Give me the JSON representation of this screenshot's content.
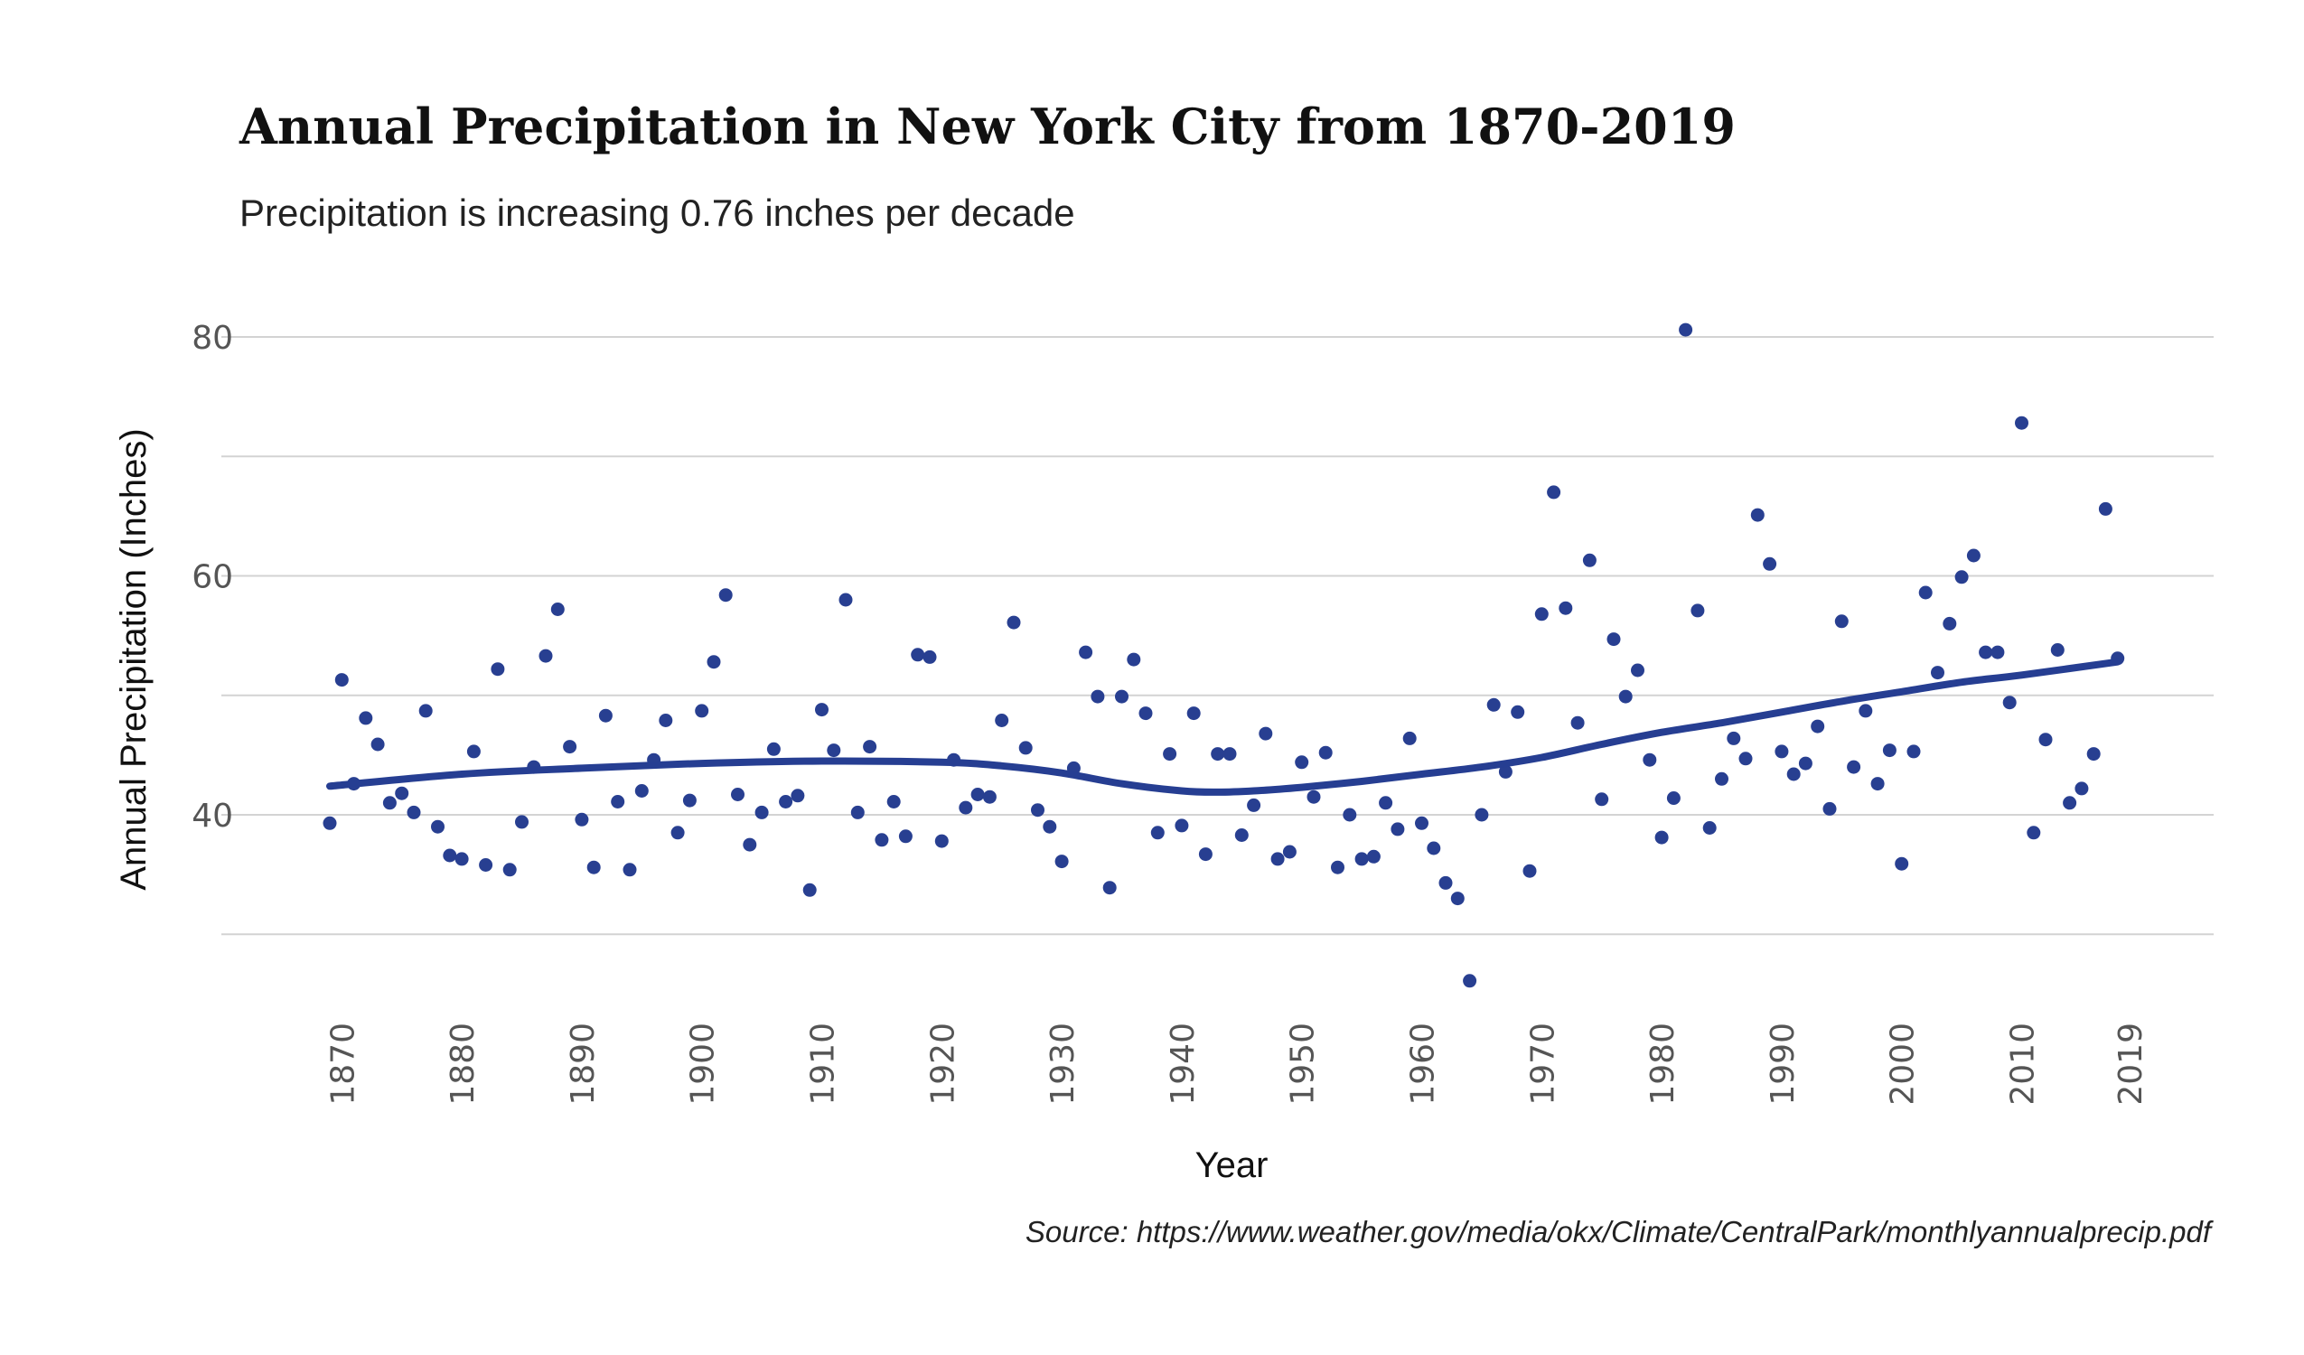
{
  "title": "Annual Precipitation in New York City from 1870-2019",
  "subtitle": "Precipitation is increasing 0.76 inches per decade",
  "caption": "Source: https://www.weather.gov/media/okx/Climate/CentralPark/monthlyannualprecip.pdf",
  "colors": {
    "points": "#283f91",
    "trend": "#263e92",
    "grid": "#d3d3d3",
    "tick_text": "#555555"
  },
  "chart_data": {
    "type": "scatter",
    "xlabel": "Year",
    "ylabel": "Annual Precipitation  (Inches)",
    "xlim": [
      1869,
      2019
    ],
    "ylim": [
      25,
      83
    ],
    "x_ticks": [
      1870,
      1880,
      1890,
      1900,
      1910,
      1920,
      1930,
      1940,
      1950,
      1960,
      1970,
      1980,
      1990,
      2000,
      2010,
      2019
    ],
    "y_ticks": [
      40,
      60,
      80
    ],
    "y_gridlines": [
      30,
      40,
      50,
      60,
      70,
      80
    ],
    "grid": true,
    "legend": "none",
    "series": [
      {
        "x": [
          1869,
          1870,
          1871,
          1872,
          1873,
          1874,
          1875,
          1876,
          1877,
          1878,
          1879,
          1880,
          1881,
          1882,
          1883,
          1884,
          1885,
          1886,
          1887,
          1888,
          1889,
          1890,
          1891,
          1892,
          1893,
          1894,
          1895,
          1896,
          1897,
          1898,
          1899,
          1900,
          1901,
          1902,
          1903,
          1904,
          1905,
          1906,
          1907,
          1908,
          1909,
          1910,
          1911,
          1912,
          1913,
          1914,
          1915,
          1916,
          1917,
          1918,
          1919,
          1920,
          1921,
          1922,
          1923,
          1924,
          1925,
          1926,
          1927,
          1928,
          1929,
          1930,
          1931,
          1932,
          1933,
          1934,
          1935,
          1936,
          1937,
          1938,
          1939,
          1940,
          1941,
          1942,
          1943,
          1944,
          1945,
          1946,
          1947,
          1948,
          1949,
          1950,
          1951,
          1952,
          1953,
          1954,
          1955,
          1956,
          1957,
          1958,
          1959,
          1960,
          1961,
          1962,
          1963,
          1964,
          1965,
          1966,
          1967,
          1968,
          1969,
          1970,
          1971,
          1972,
          1973,
          1974,
          1975,
          1976,
          1977,
          1978,
          1979,
          1980,
          1981,
          1982,
          1983,
          1984,
          1985,
          1986,
          1987,
          1988,
          1989,
          1990,
          1991,
          1992,
          1993,
          1994,
          1995,
          1996,
          1997,
          1998,
          1999,
          2000,
          2001,
          2002,
          2003,
          2004,
          2005,
          2006,
          2007,
          2008,
          2009,
          2010,
          2011,
          2012,
          2013,
          2014,
          2015,
          2016,
          2017,
          2018
        ],
        "y": [
          39.3,
          51.3,
          42.6,
          48.1,
          45.9,
          41.0,
          41.8,
          40.2,
          48.7,
          39.0,
          36.6,
          36.3,
          45.3,
          35.8,
          52.2,
          35.4,
          39.4,
          44.0,
          53.3,
          57.2,
          45.7,
          39.6,
          35.6,
          48.3,
          41.1,
          35.4,
          42.0,
          44.6,
          47.9,
          38.5,
          41.2,
          48.7,
          52.8,
          58.4,
          41.7,
          37.5,
          40.2,
          45.5,
          41.1,
          41.6,
          33.7,
          48.8,
          45.4,
          58.0,
          40.2,
          45.7,
          37.9,
          41.1,
          38.2,
          53.4,
          53.2,
          37.8,
          44.6,
          40.6,
          41.7,
          41.5,
          47.9,
          56.1,
          45.6,
          40.4,
          39.0,
          36.1,
          43.9,
          53.6,
          49.9,
          33.9,
          49.9,
          53.0,
          48.5,
          38.5,
          45.1,
          39.1,
          48.5,
          36.7,
          45.1,
          45.1,
          38.3,
          40.8,
          46.8,
          36.3,
          36.9,
          44.4,
          41.5,
          45.2,
          35.6,
          40.0,
          36.3,
          36.5,
          41.0,
          38.8,
          46.4,
          39.3,
          37.2,
          34.3,
          33.0,
          26.1,
          40.0,
          49.2,
          43.6,
          48.6,
          35.3,
          56.8,
          67.0,
          57.3,
          47.7,
          61.3,
          41.3,
          54.7,
          49.9,
          52.1,
          44.6,
          38.1,
          41.4,
          80.6,
          57.1,
          38.9,
          43.0,
          46.4,
          44.7,
          65.1,
          61.0,
          45.3,
          43.4,
          44.3,
          47.4,
          40.5,
          56.2,
          44.0,
          48.7,
          42.6,
          45.4,
          35.9,
          45.3,
          58.6,
          51.9,
          56.0,
          59.9,
          61.7,
          53.6,
          53.6,
          49.4,
          72.8,
          38.5,
          46.3,
          53.8,
          41.0,
          42.2,
          45.1,
          65.6,
          53.1
        ]
      }
    ],
    "trend": {
      "type": "smooth",
      "x": [
        1869,
        1880,
        1890,
        1900,
        1910,
        1920,
        1925,
        1930,
        1935,
        1940,
        1943,
        1946,
        1950,
        1955,
        1960,
        1965,
        1970,
        1975,
        1980,
        1985,
        1990,
        1995,
        2000,
        2005,
        2010,
        2018
      ],
      "y": [
        42.4,
        43.4,
        43.9,
        44.3,
        44.5,
        44.4,
        44.1,
        43.5,
        42.6,
        42.0,
        41.9,
        42.0,
        42.3,
        42.8,
        43.4,
        44.0,
        44.8,
        45.9,
        46.9,
        47.7,
        48.6,
        49.5,
        50.3,
        51.1,
        51.7,
        52.8
      ]
    }
  }
}
